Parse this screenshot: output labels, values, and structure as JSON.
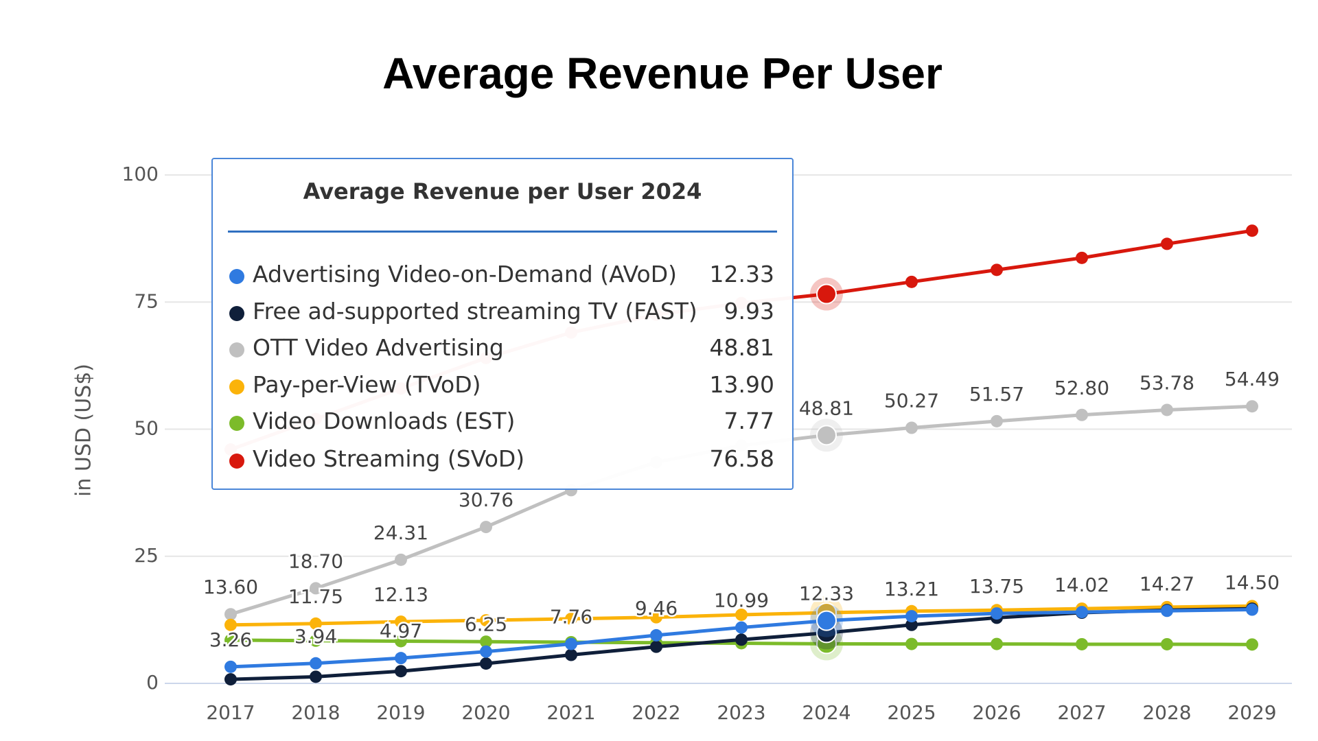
{
  "chart_data": {
    "type": "line",
    "title": "Average Revenue Per User",
    "y_label": "in USD (US$)",
    "categories": [
      "2017",
      "2018",
      "2019",
      "2020",
      "2021",
      "2022",
      "2023",
      "2024",
      "2025",
      "2026",
      "2027",
      "2028",
      "2029"
    ],
    "ylim": [
      0,
      100
    ],
    "yticks": [
      0,
      25,
      50,
      75,
      100
    ],
    "grid": true,
    "series": [
      {
        "name": "OTT Video Advertising",
        "color": "#c0c0c0",
        "values": [
          13.6,
          18.7,
          24.31,
          30.76,
          38,
          43.5,
          46.8,
          48.81,
          50.27,
          51.57,
          52.8,
          53.78,
          54.49
        ],
        "value_labels": [
          "13.60",
          "18.70",
          "24.31",
          "30.76",
          null,
          null,
          null,
          "48.81",
          "50.27",
          "51.57",
          "52.80",
          "53.78",
          "54.49"
        ]
      },
      {
        "name": "Video Downloads (EST)",
        "color": "#7cbb2a",
        "values": [
          8.5,
          8.4,
          8.3,
          8.2,
          8.1,
          8,
          7.9,
          7.77,
          7.75,
          7.75,
          7.7,
          7.7,
          7.65
        ]
      },
      {
        "name": "Pay-per-View (TVoD)",
        "color": "#fbb30a",
        "values": [
          11.5,
          11.75,
          12.13,
          12.4,
          12.7,
          13,
          13.5,
          13.9,
          14.2,
          14.4,
          14.7,
          15,
          15.2
        ],
        "value_labels": [
          null,
          "11.75",
          "12.13",
          null,
          null,
          null,
          null,
          null,
          null,
          null,
          null,
          null,
          null
        ]
      },
      {
        "name": "Free ad-supported streaming TV (FAST)",
        "color": "#0f1f3a",
        "values": [
          0.8,
          1.3,
          2.4,
          3.9,
          5.6,
          7.2,
          8.6,
          9.93,
          11.5,
          12.9,
          13.9,
          14.4,
          14.7
        ]
      },
      {
        "name": "Advertising Video-on-Demand (AVoD)",
        "color": "#2f7ae0",
        "values": [
          3.26,
          3.94,
          4.97,
          6.25,
          7.76,
          9.46,
          10.99,
          12.33,
          13.21,
          13.75,
          14.02,
          14.27,
          14.5
        ],
        "value_labels": [
          "3.26",
          "3.94",
          "4.97",
          "6.25",
          "7.76",
          "9.46",
          "10.99",
          "12.33",
          "13.21",
          "13.75",
          "14.02",
          "14.27",
          "14.50"
        ]
      },
      {
        "name": "Video Streaming (SVoD)",
        "color": "#d8180d",
        "values": [
          46,
          52,
          58,
          64,
          69,
          72.5,
          74.8,
          76.58,
          78.97,
          81.33,
          83.69,
          86.45,
          89.04
        ]
      }
    ],
    "tooltip": {
      "title": "Average Revenue per User 2024",
      "index": 7,
      "rows": [
        {
          "name": "Advertising Video-on-Demand (AVoD)",
          "color": "#2f7ae0",
          "value": "12.33"
        },
        {
          "name": "Free ad-supported streaming TV (FAST)",
          "color": "#0f1f3a",
          "value": "9.93"
        },
        {
          "name": "OTT Video Advertising",
          "color": "#c0c0c0",
          "value": "48.81"
        },
        {
          "name": "Pay-per-View (TVoD)",
          "color": "#fbb30a",
          "value": "13.90"
        },
        {
          "name": "Video Downloads (EST)",
          "color": "#7cbb2a",
          "value": "7.77"
        },
        {
          "name": "Video Streaming (SVoD)",
          "color": "#d8180d",
          "value": "76.58"
        }
      ]
    }
  }
}
